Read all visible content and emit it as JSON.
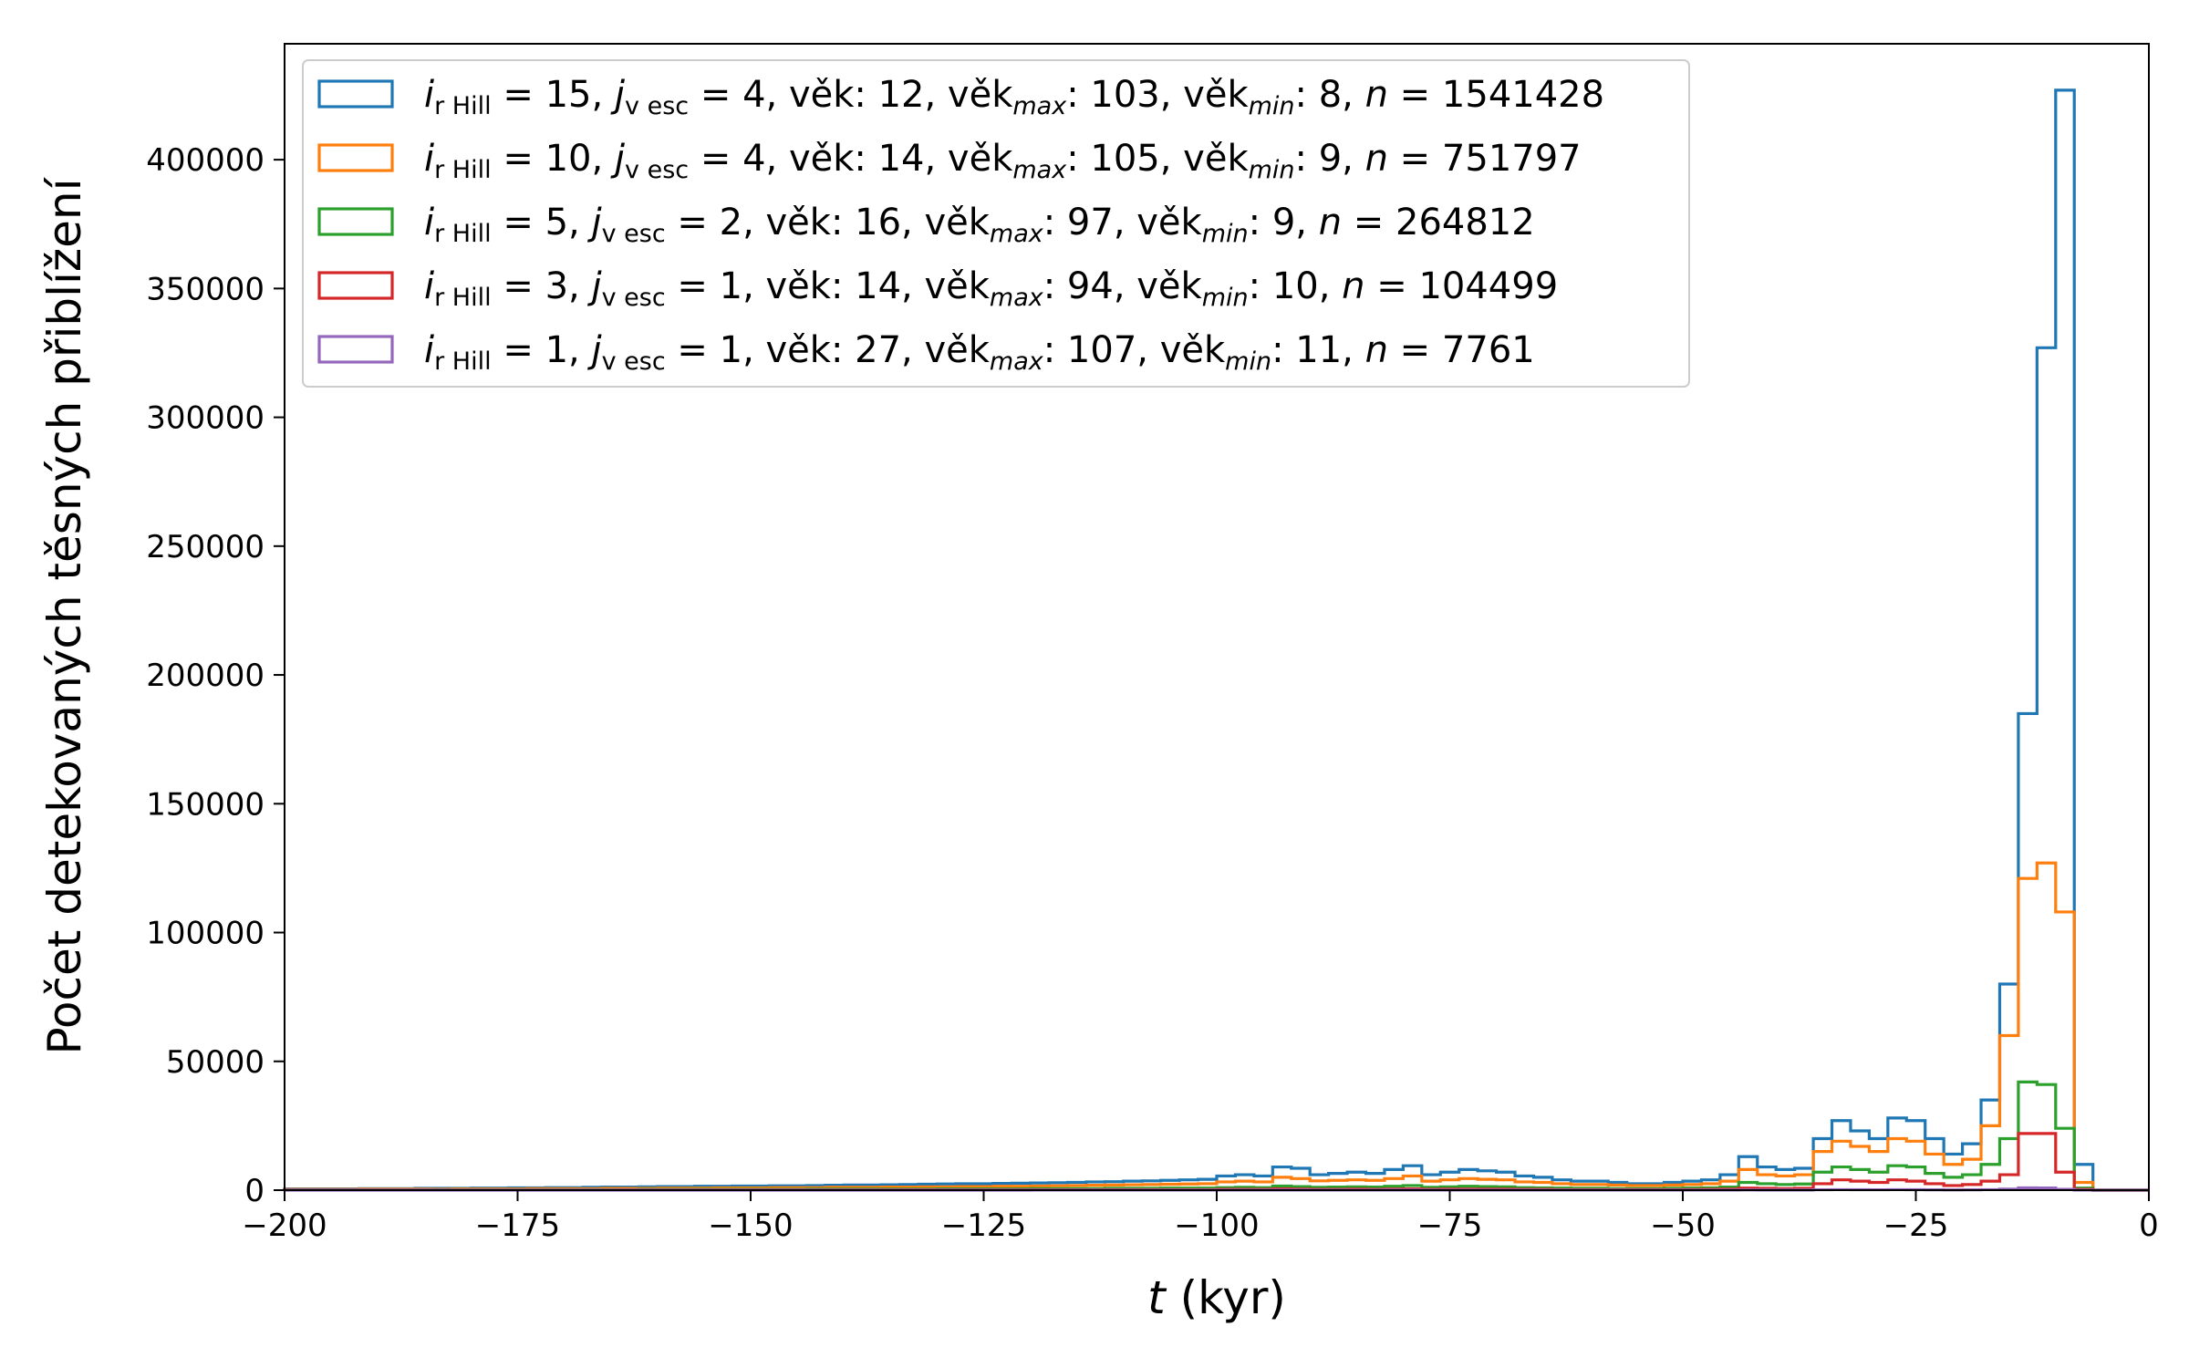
{
  "chart_data": {
    "type": "histogram",
    "title": "",
    "xlabel": {
      "var": "t",
      "rest": " (kyr)"
    },
    "ylabel": "Počet detekovaných těsných přiblížení",
    "xlim": [
      -200,
      0
    ],
    "ylim": [
      0,
      445000
    ],
    "xticks": [
      -200,
      -175,
      -150,
      -125,
      -100,
      -75,
      -50,
      -25,
      0
    ],
    "xtick_labels": [
      "−200",
      "−175",
      "−150",
      "−125",
      "−100",
      "−75",
      "−50",
      "−25",
      "0"
    ],
    "yticks": [
      0,
      50000,
      100000,
      150000,
      200000,
      250000,
      300000,
      350000,
      400000
    ],
    "ytick_labels": [
      "0",
      "50000",
      "100000",
      "150000",
      "200000",
      "250000",
      "300000",
      "350000",
      "400000"
    ],
    "legend_position": "top-left",
    "bin_edges": [
      -200,
      -198,
      -196,
      -194,
      -192,
      -190,
      -188,
      -186,
      -184,
      -182,
      -180,
      -178,
      -176,
      -174,
      -172,
      -170,
      -168,
      -166,
      -164,
      -162,
      -160,
      -158,
      -156,
      -154,
      -152,
      -150,
      -148,
      -146,
      -144,
      -142,
      -140,
      -138,
      -136,
      -134,
      -132,
      -130,
      -128,
      -126,
      -124,
      -122,
      -120,
      -118,
      -116,
      -114,
      -112,
      -110,
      -108,
      -106,
      -104,
      -102,
      -100,
      -98,
      -96,
      -94,
      -92,
      -90,
      -88,
      -86,
      -84,
      -82,
      -80,
      -78,
      -76,
      -74,
      -72,
      -70,
      -68,
      -66,
      -64,
      -62,
      -60,
      -58,
      -56,
      -54,
      -52,
      -50,
      -48,
      -46,
      -44,
      -42,
      -40,
      -38,
      -36,
      -34,
      -32,
      -30,
      -28,
      -26,
      -24,
      -22,
      -20,
      -18,
      -16,
      -14,
      -12,
      -10,
      -8,
      -6,
      -4,
      -2,
      0
    ],
    "series": [
      {
        "legend": {
          "i": "15",
          "j": "4",
          "age": "12",
          "agemax": "103",
          "agemin": "8",
          "n": "1541428"
        },
        "color": "#1f77b4",
        "counts": [
          500,
          500,
          500,
          500,
          600,
          600,
          600,
          700,
          700,
          700,
          800,
          800,
          900,
          900,
          1000,
          1000,
          1100,
          1200,
          1200,
          1300,
          1400,
          1400,
          1500,
          1500,
          1600,
          1600,
          1700,
          1700,
          1800,
          1900,
          2000,
          2000,
          2100,
          2200,
          2300,
          2400,
          2500,
          2500,
          2600,
          2700,
          2800,
          2900,
          3000,
          3200,
          3300,
          3500,
          3600,
          3800,
          4000,
          4200,
          5500,
          6000,
          5500,
          9000,
          8500,
          6000,
          6500,
          7000,
          6500,
          8000,
          9500,
          6000,
          7000,
          8000,
          7500,
          7000,
          5500,
          5000,
          4000,
          3500,
          3500,
          3000,
          2500,
          2500,
          3000,
          3500,
          4000,
          6000,
          13000,
          9000,
          8000,
          8500,
          20000,
          27000,
          23000,
          20000,
          28000,
          27000,
          20000,
          14000,
          18000,
          35000,
          80000,
          185000,
          327000,
          427000,
          10000,
          0,
          0,
          0
        ]
      },
      {
        "legend": {
          "i": "10",
          "j": "4",
          "age": "14",
          "agemax": "105",
          "agemin": "9",
          "n": "751797"
        },
        "color": "#ff7f0e",
        "counts": [
          300,
          300,
          300,
          300,
          400,
          400,
          400,
          400,
          400,
          500,
          500,
          500,
          500,
          600,
          600,
          600,
          600,
          700,
          700,
          700,
          800,
          800,
          800,
          900,
          900,
          900,
          1000,
          1000,
          1000,
          1100,
          1100,
          1100,
          1200,
          1200,
          1300,
          1300,
          1400,
          1400,
          1500,
          1500,
          1600,
          1700,
          1800,
          1900,
          2000,
          2100,
          2200,
          2300,
          2400,
          2500,
          3200,
          3500,
          3200,
          5000,
          4500,
          3600,
          3800,
          4000,
          3800,
          4500,
          5500,
          3500,
          4000,
          4500,
          4200,
          4000,
          3200,
          3000,
          2500,
          2200,
          2200,
          2000,
          1800,
          1800,
          2000,
          2200,
          2500,
          3500,
          8000,
          6000,
          5500,
          6000,
          15000,
          19000,
          17000,
          15000,
          20000,
          19000,
          14000,
          10000,
          12000,
          25000,
          60000,
          121000,
          127000,
          108000,
          3000,
          0,
          0,
          0
        ]
      },
      {
        "legend": {
          "i": " 5",
          "j": "2",
          "age": "16",
          "agemax": " 97",
          "agemin": "9",
          "n": "264812"
        },
        "color": "#2ca02c",
        "counts": [
          100,
          100,
          100,
          100,
          100,
          100,
          100,
          100,
          200,
          200,
          200,
          200,
          200,
          200,
          200,
          200,
          200,
          200,
          200,
          300,
          300,
          300,
          300,
          300,
          300,
          300,
          300,
          300,
          400,
          400,
          400,
          400,
          400,
          400,
          400,
          500,
          500,
          500,
          500,
          500,
          600,
          600,
          600,
          600,
          700,
          700,
          700,
          800,
          800,
          800,
          1000,
          1100,
          1000,
          1600,
          1400,
          1100,
          1200,
          1300,
          1200,
          1500,
          1800,
          1100,
          1300,
          1500,
          1400,
          1300,
          1000,
          900,
          800,
          700,
          700,
          600,
          600,
          600,
          700,
          800,
          900,
          1200,
          3000,
          2500,
          2200,
          2400,
          7000,
          9000,
          8000,
          7000,
          9500,
          9000,
          6500,
          5000,
          6000,
          10000,
          20000,
          42000,
          41000,
          24000,
          800,
          0,
          0,
          0
        ]
      },
      {
        "legend": {
          "i": " 3",
          "j": "1",
          "age": "14",
          "agemax": " 94",
          "agemin": "10",
          "n": "104499"
        },
        "color": "#d62728",
        "counts": [
          50,
          50,
          50,
          50,
          50,
          50,
          50,
          50,
          60,
          60,
          60,
          60,
          60,
          60,
          70,
          70,
          70,
          70,
          80,
          80,
          80,
          80,
          80,
          90,
          90,
          90,
          100,
          100,
          100,
          100,
          110,
          110,
          110,
          120,
          120,
          120,
          130,
          130,
          140,
          140,
          150,
          150,
          160,
          160,
          170,
          170,
          180,
          190,
          200,
          200,
          300,
          300,
          300,
          500,
          400,
          300,
          300,
          400,
          300,
          400,
          500,
          300,
          400,
          400,
          400,
          400,
          300,
          300,
          200,
          200,
          200,
          200,
          200,
          200,
          200,
          250,
          300,
          400,
          800,
          700,
          600,
          700,
          2500,
          4000,
          3500,
          3000,
          4000,
          3500,
          2500,
          1800,
          2200,
          3500,
          6000,
          22000,
          22000,
          7000,
          300,
          0,
          0,
          0
        ]
      },
      {
        "legend": {
          "i": " 1",
          "j": "1",
          "age": "27",
          "agemax": "107",
          "agemin": "11",
          "n": "7761"
        },
        "color": "#9467bd",
        "counts": [
          5,
          5,
          5,
          5,
          5,
          5,
          5,
          5,
          5,
          5,
          5,
          5,
          5,
          5,
          10,
          10,
          10,
          10,
          10,
          10,
          10,
          10,
          10,
          10,
          10,
          10,
          10,
          10,
          10,
          10,
          10,
          10,
          10,
          10,
          10,
          10,
          10,
          10,
          10,
          10,
          20,
          20,
          20,
          20,
          20,
          20,
          20,
          20,
          20,
          20,
          30,
          30,
          30,
          40,
          40,
          30,
          30,
          30,
          30,
          40,
          40,
          30,
          30,
          30,
          30,
          30,
          30,
          30,
          20,
          20,
          20,
          20,
          20,
          20,
          20,
          20,
          20,
          30,
          60,
          50,
          50,
          50,
          150,
          200,
          180,
          150,
          200,
          180,
          130,
          100,
          120,
          200,
          400,
          900,
          850,
          300,
          20,
          0,
          0,
          0
        ]
      }
    ]
  }
}
